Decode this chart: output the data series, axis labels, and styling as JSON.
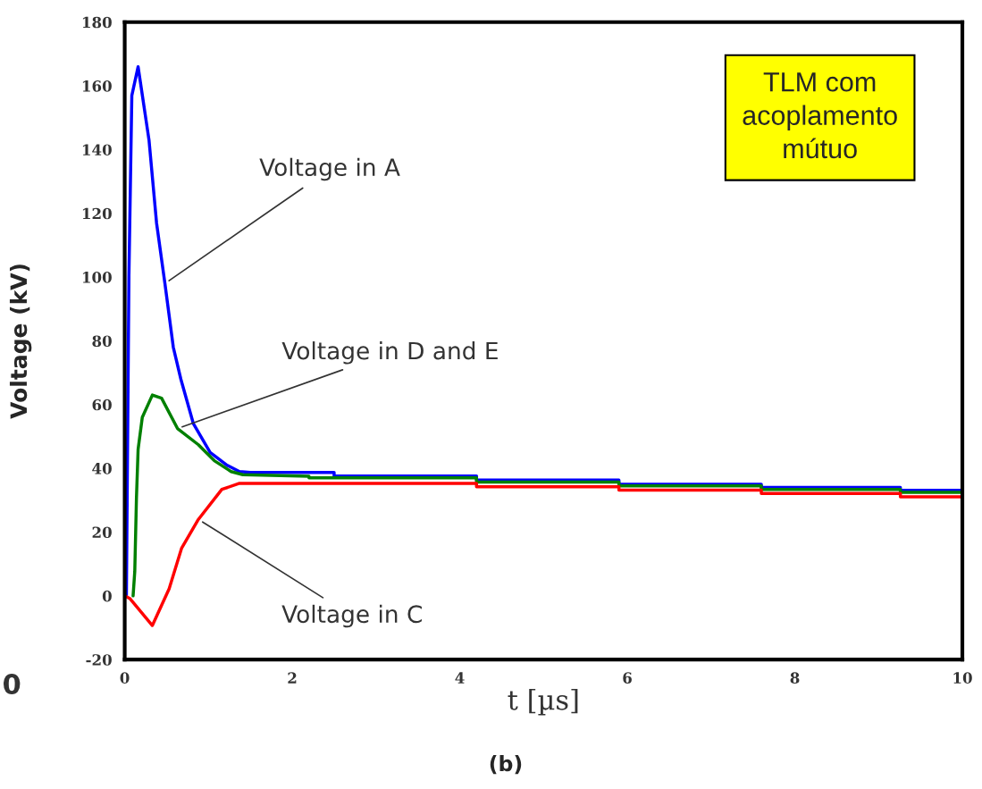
{
  "chart_data": {
    "type": "line",
    "xlabel": "t [µs]",
    "ylabel": "Voltage (kV)",
    "xlim": [
      0,
      10
    ],
    "ylim": [
      -20,
      180
    ],
    "xticks": [
      0,
      2,
      4,
      6,
      8,
      10
    ],
    "yticks": [
      -20,
      0,
      20,
      40,
      60,
      80,
      100,
      120,
      140,
      160,
      180
    ],
    "grid": false,
    "legend": false,
    "marker": "none",
    "line_style": "solid",
    "series": [
      {
        "color": "#0000ff",
        "x": [
          0.02,
          0.05,
          0.085,
          0.16,
          0.29,
          0.38,
          0.48,
          0.58,
          0.67,
          0.82,
          1.02,
          1.22,
          1.37,
          1.5,
          2.5,
          2.5,
          4.2,
          4.2,
          5.9,
          5.9,
          7.6,
          7.6,
          9.26,
          9.26,
          10
        ],
        "values": [
          0,
          100,
          157,
          166,
          143,
          117,
          98,
          78,
          68,
          54,
          45,
          41,
          39,
          38.7,
          38.7,
          37.6,
          37.6,
          36.3,
          36.3,
          35,
          35,
          34,
          34,
          33.1,
          33.1
        ]
      },
      {
        "color": "#008000",
        "x": [
          0.1,
          0.12,
          0.14,
          0.16,
          0.21,
          0.33,
          0.44,
          0.63,
          0.88,
          1.07,
          1.27,
          1.41,
          2.2,
          2.2,
          4.2,
          4.2,
          5.9,
          5.9,
          7.6,
          7.6,
          9.26,
          9.26,
          10
        ],
        "values": [
          0,
          7.6,
          30.6,
          46,
          56,
          63,
          62,
          52.5,
          47.4,
          42.4,
          39,
          38,
          37.5,
          37,
          37,
          35.7,
          35.7,
          34.5,
          34.5,
          33.4,
          33.4,
          32.5,
          32.5
        ]
      },
      {
        "color": "#ff0000",
        "x": [
          0,
          0.06,
          0.33,
          0.53,
          0.68,
          0.88,
          1.16,
          1.37,
          4.2,
          4.2,
          5.9,
          5.9,
          7.6,
          7.6,
          9.26,
          9.26,
          10
        ],
        "values": [
          0,
          -0.8,
          -9.3,
          2.2,
          15,
          24,
          33.4,
          35.3,
          35.3,
          34.2,
          34.2,
          33.2,
          33.2,
          32.1,
          32.1,
          31.1,
          31.1
        ]
      }
    ],
    "annotations": [
      {
        "text": "Voltage in A",
        "x": 0.48,
        "y": 98
      },
      {
        "text": "Voltage in D and E",
        "x": 0.63,
        "y": 52.5
      },
      {
        "text": "Voltage in C",
        "x": 0.88,
        "y": 24
      },
      "TLM com\nacoplamento\nmútuo",
      "(b)",
      "0"
    ]
  }
}
